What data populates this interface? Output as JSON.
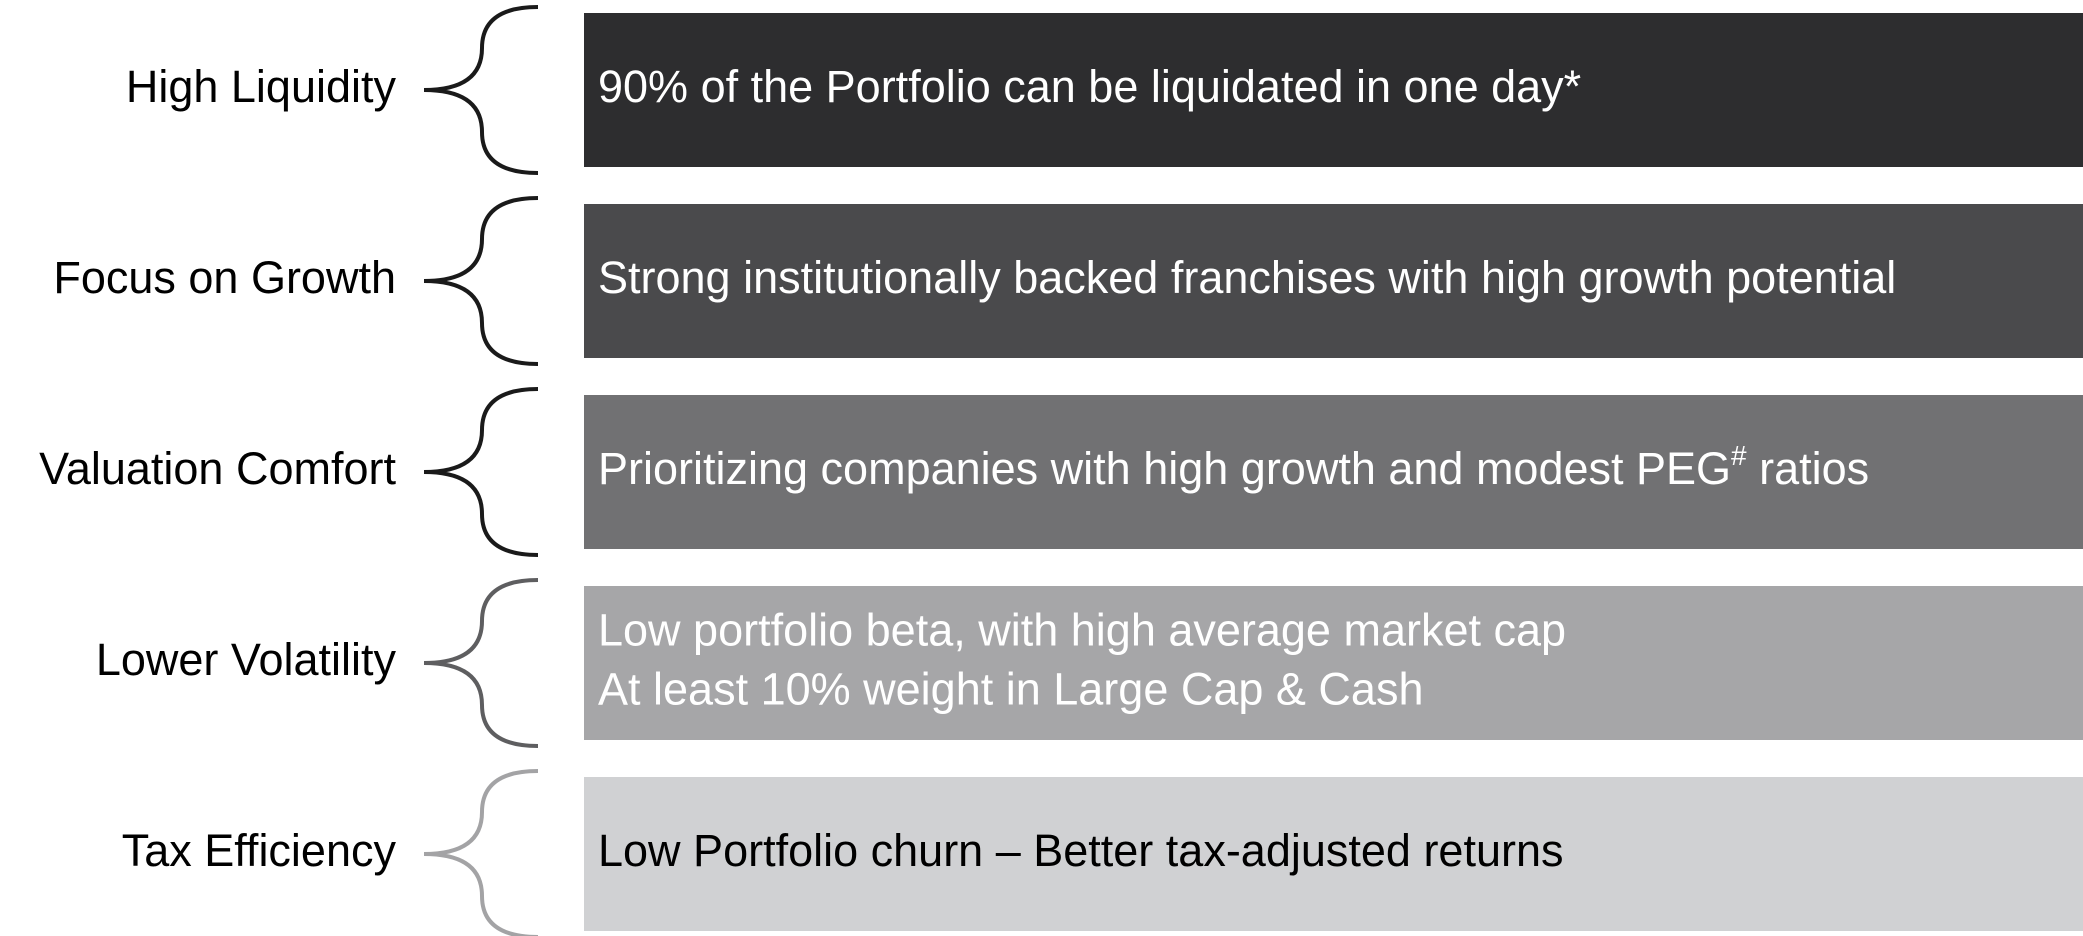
{
  "rows": [
    {
      "label": "High Liquidity",
      "lines": [
        "90% of the Portfolio can be liquidated in one day*"
      ],
      "fill": "#2d2d2f",
      "text_color": "#ffffff",
      "brace_color": "#1a1a1a"
    },
    {
      "label": "Focus on Growth",
      "lines": [
        "Strong institutionally backed franchises with high growth potential"
      ],
      "fill": "#4a4a4c",
      "text_color": "#ffffff",
      "brace_color": "#1a1a1a"
    },
    {
      "label": "Valuation Comfort",
      "lines": [
        "Prioritizing companies with high growth and modest PEG"
      ],
      "sup": "#",
      "after": " ratios",
      "fill": "#717173",
      "text_color": "#ffffff",
      "brace_color": "#1a1a1a"
    },
    {
      "label": "Lower Volatility",
      "lines": [
        "Low portfolio beta, with high average market cap",
        "At least 10% weight in Large Cap & Cash"
      ],
      "fill": "#a6a6a8",
      "text_color": "#ffffff",
      "brace_color": "#5e5e60"
    },
    {
      "label": "Tax Efficiency",
      "lines": [
        "Low Portfolio churn – Better tax-adjusted returns"
      ],
      "fill": "#d0d1d3",
      "text_color": "#000000",
      "brace_color": "#a3a3a5"
    }
  ]
}
